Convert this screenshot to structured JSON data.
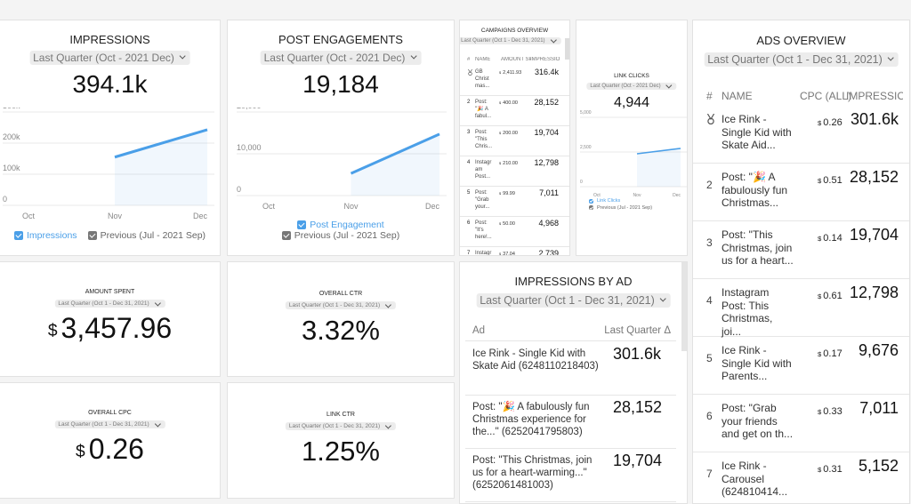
{
  "impressions": {
    "title": "IMPRESSIONS",
    "date": "Last Quarter (Oct - 2021 Dec)",
    "value": "394.1k",
    "chart": {
      "type": "line",
      "categories": [
        "Oct",
        "Nov",
        "Dec"
      ],
      "series": [
        {
          "name": "Impressions",
          "color": "#4a9fe8",
          "values": [
            null,
            155000,
            243000
          ]
        },
        {
          "name": "Previous (Jul - 2021 Sep)",
          "color": "#777777",
          "values": [
            null,
            null,
            null
          ]
        }
      ],
      "ylim": [
        0,
        300000
      ],
      "yticks": [
        0,
        {
          "value": 100000,
          "label": "100k"
        },
        {
          "value": 200000,
          "label": "200k"
        },
        {
          "value": 300000,
          "label": "300k"
        }
      ]
    }
  },
  "post_engagements": {
    "title": "POST ENGAGEMENTS",
    "date": "Last Quarter (Oct - 2021 Dec)",
    "value": "19,184",
    "chart": {
      "type": "line",
      "categories": [
        "Oct",
        "Nov",
        "Dec"
      ],
      "series": [
        {
          "name": "Post Engagement",
          "color": "#4a9fe8",
          "values": [
            null,
            5300,
            14700
          ]
        },
        {
          "name": "Previous (Jul - 2021 Sep)",
          "color": "#777777",
          "values": [
            null,
            null,
            null
          ]
        }
      ],
      "ylim": [
        0,
        20000
      ],
      "yticks": [
        0,
        {
          "value": 10000,
          "label": "10,000"
        },
        {
          "value": 20000,
          "label": "20,000"
        }
      ]
    }
  },
  "campaigns_overview": {
    "title": "CAMPAIGNS OVERVIEW",
    "date": "Last Quarter (Oct 1 - Dec 31, 2021)",
    "columns": [
      "#",
      "NAME",
      "AMOUNT SP...",
      "IMPRESSIO..."
    ],
    "currency": "$",
    "rows": [
      {
        "name": "GB Christ mas...",
        "amount": "2,411.93",
        "impressions": "316.4k"
      },
      {
        "rank": "2",
        "name": "Post: \"🎉 A fabul...",
        "amount": "400.00",
        "impressions": "28,152"
      },
      {
        "rank": "3",
        "name": "Post: \"This Chris...",
        "amount": "200.00",
        "impressions": "19,704"
      },
      {
        "rank": "4",
        "name": "Instagr am Post...",
        "amount": "210.00",
        "impressions": "12,798"
      },
      {
        "rank": "5",
        "name": "Post: \"Grab your...",
        "amount": "99.99",
        "impressions": "7,011"
      },
      {
        "rank": "6",
        "name": "Post: \"It's here!...",
        "amount": "50.00",
        "impressions": "4,968"
      },
      {
        "rank": "7",
        "name": "Instagr",
        "amount": "37.04",
        "impressions": "2,739"
      }
    ]
  },
  "link_clicks": {
    "title": "LINK CLICKS",
    "date": "Last Quarter (Oct - 2021 Dec)",
    "value": "4,944",
    "chart": {
      "type": "line",
      "categories": [
        "Oct",
        "Nov",
        "Dec"
      ],
      "series": [
        {
          "name": "Link Clicks",
          "color": "#4a9fe8",
          "values": [
            null,
            2370,
            2760
          ]
        },
        {
          "name": "Previous (Jul - 2021 Sep)",
          "color": "#777777",
          "values": [
            null,
            null,
            null
          ]
        }
      ],
      "ylim": [
        0,
        5000
      ],
      "yticks": [
        0,
        {
          "value": 2500,
          "label": "2,500"
        },
        {
          "value": 5000,
          "label": "5,000"
        }
      ]
    }
  },
  "ads_overview": {
    "title": "ADS OVERVIEW",
    "date": "Last Quarter (Oct 1 - Dec 31, 2021)",
    "columns": [
      "#",
      "NAME",
      "CPC (ALL)",
      "IMPRESSIO..."
    ],
    "currency": "$",
    "rows": [
      {
        "name": "Ice Rink - Single Kid with Skate Aid...",
        "cpc": "0.26",
        "impressions": "301.6k"
      },
      {
        "rank": "2",
        "name": "Post: \"🎉 A fabulously fun Christmas...",
        "cpc": "0.51",
        "impressions": "28,152"
      },
      {
        "rank": "3",
        "name": "Post: \"This Christmas, join us for a heart...",
        "cpc": "0.14",
        "impressions": "19,704"
      },
      {
        "rank": "4",
        "name": "Instagram Post: This Christmas, joi...",
        "cpc": "0.61",
        "impressions": "12,798"
      },
      {
        "rank": "5",
        "name": "Ice Rink - Single Kid with Parents...",
        "cpc": "0.17",
        "impressions": "9,676"
      },
      {
        "rank": "6",
        "name": "Post: \"Grab your friends and get on th...",
        "cpc": "0.33",
        "impressions": "7,011"
      },
      {
        "rank": "7",
        "name": "Ice Rink - Carousel (624810414...",
        "cpc": "0.31",
        "impressions": "5,152"
      }
    ]
  },
  "amount_spent": {
    "title": "AMOUNT SPENT",
    "date": "Last Quarter (Oct 1 - Dec 31, 2021)",
    "currency": "$",
    "value": "3,457.96"
  },
  "overall_ctr": {
    "title": "OVERALL CTR",
    "date": "Last Quarter (Oct 1 - Dec 31, 2021)",
    "value": "3.32%"
  },
  "overall_cpc": {
    "title": "OVERALL CPC",
    "date": "Last Quarter (Oct 1 - Dec 31, 2021)",
    "currency": "$",
    "value": "0.26"
  },
  "link_ctr": {
    "title": "LINK CTR",
    "date": "Last Quarter (Oct 1 - Dec 31, 2021)",
    "value": "1.25%"
  },
  "impressions_by_ad": {
    "title": "IMPRESSIONS BY AD",
    "date": "Last Quarter (Oct 1 - Dec 31, 2021)",
    "columns": [
      "Ad",
      "Last Quarter Δ"
    ],
    "rows": [
      {
        "ad": "Ice Rink - Single Kid with Skate Aid (6248110218403)",
        "value": "301.6k"
      },
      {
        "ad": "Post: \"🎉 A fabulously fun Christmas experience for the...\" (6252041795803)",
        "value": "28,152"
      },
      {
        "ad": "Post: \"This Christmas, join us for a heart-warming...\" (6252061481003)",
        "value": "19,704"
      }
    ]
  }
}
